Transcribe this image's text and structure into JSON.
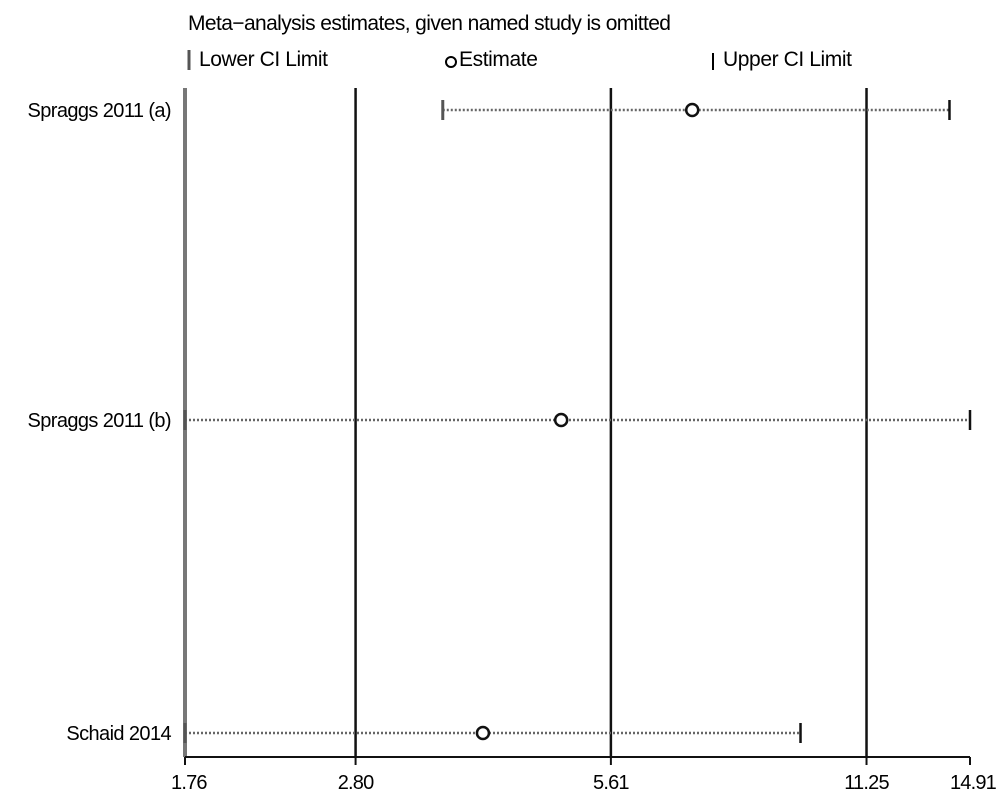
{
  "chart_data": {
    "type": "forest",
    "title": "Meta−analysis estimates, given named study is omitted",
    "legend": {
      "lower": "Lower CI Limit",
      "estimate": "Estimate",
      "upper": "Upper CI Limit"
    },
    "x_ticks": [
      {
        "value": 1.76,
        "label": "1.76"
      },
      {
        "value": 2.8,
        "label": "2.80"
      },
      {
        "value": 5.61,
        "label": "5.61"
      },
      {
        "value": 11.25,
        "label": "11.25"
      },
      {
        "value": 14.91,
        "label": "14.91"
      }
    ],
    "xlim": [
      1.76,
      14.91
    ],
    "scale": "log",
    "reference_lines": [
      2.8,
      5.61,
      11.25
    ],
    "studies": [
      {
        "label": "Spraggs 2011 (a)",
        "lower": 3.55,
        "estimate": 7.0,
        "upper": 14.1
      },
      {
        "label": "Spraggs 2011 (b)",
        "lower": 1.76,
        "estimate": 4.9,
        "upper": 14.91
      },
      {
        "label": "Schaid 2014",
        "lower": 1.76,
        "estimate": 3.96,
        "upper": 9.4
      }
    ]
  }
}
